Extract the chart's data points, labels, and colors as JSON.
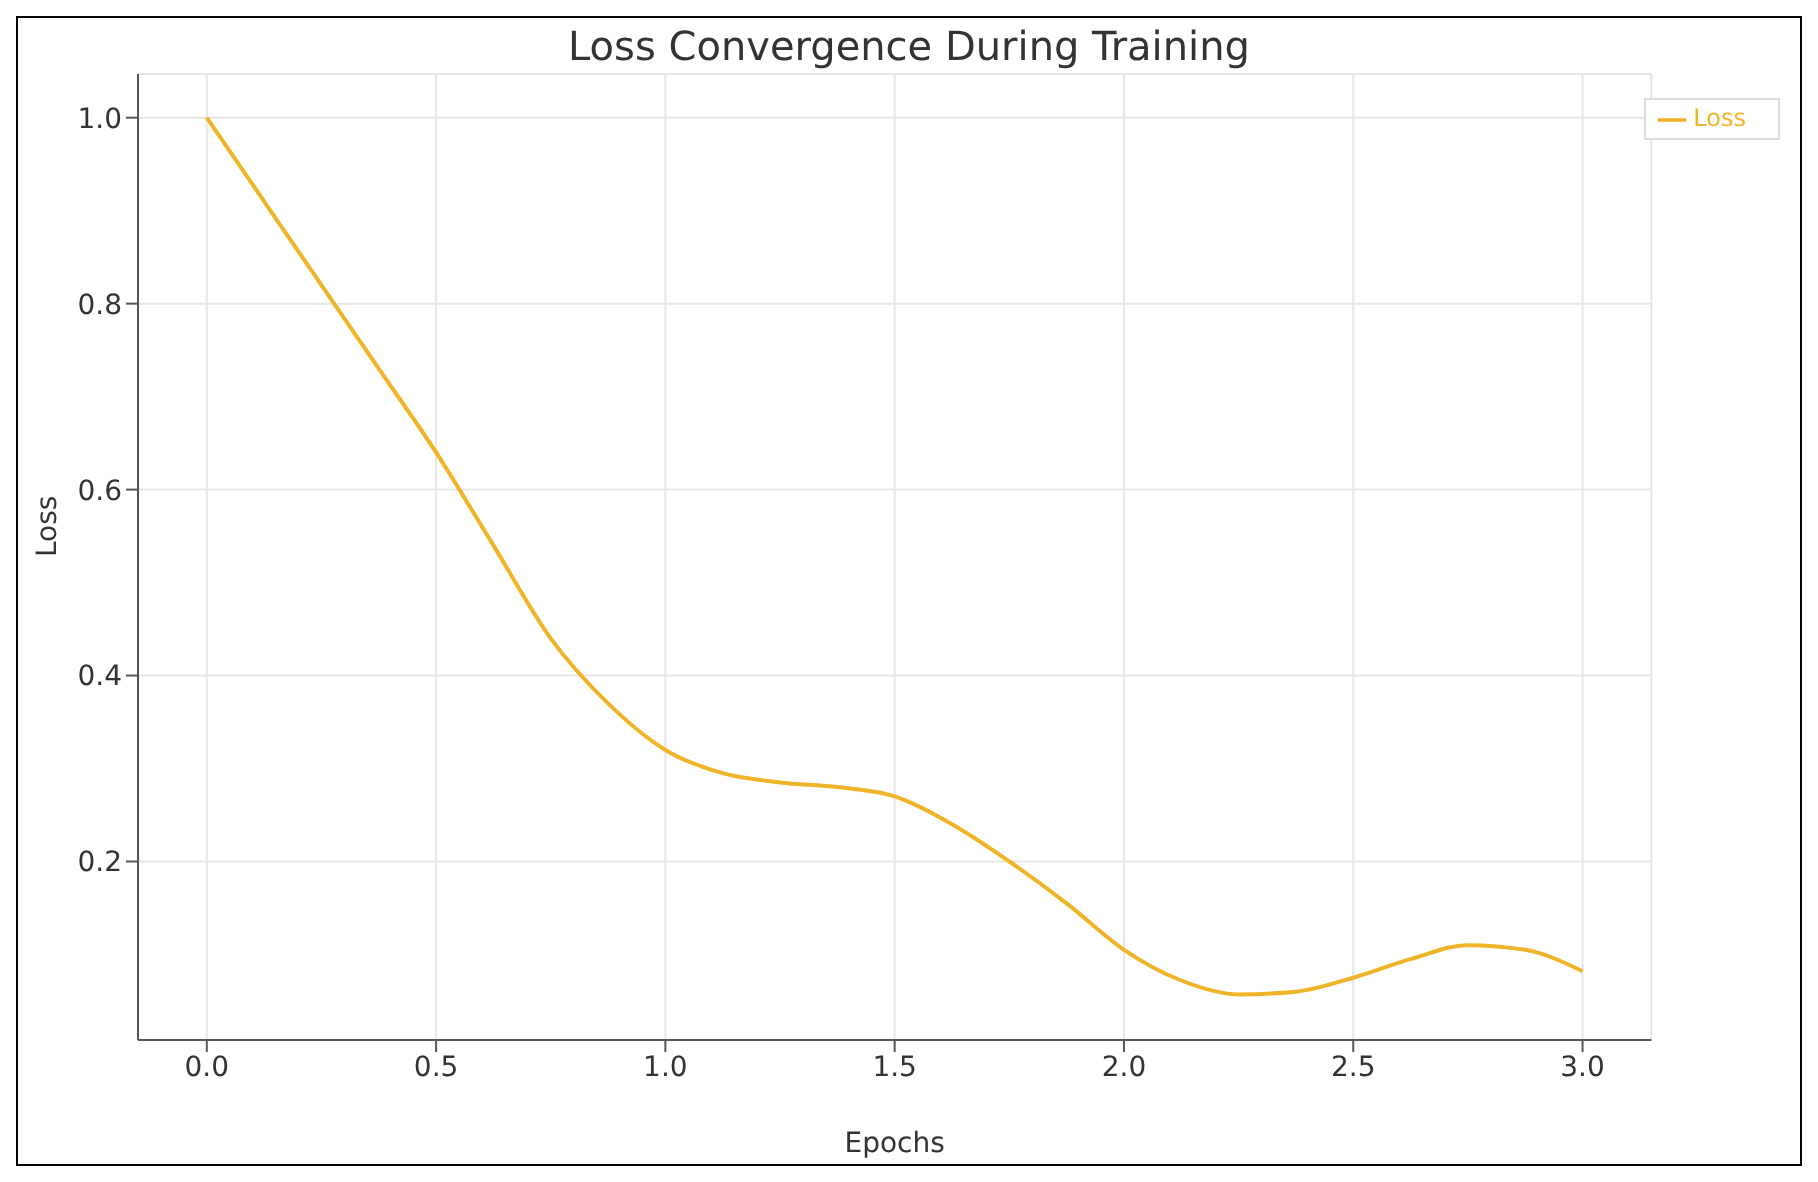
{
  "chart_data": {
    "type": "line",
    "title": "Loss Convergence During Training",
    "xlabel": "Epochs",
    "ylabel": "Loss",
    "x": [
      0,
      0.125,
      0.25,
      0.375,
      0.5,
      0.625,
      0.75,
      0.875,
      1.0,
      1.125,
      1.25,
      1.375,
      1.5,
      1.625,
      1.75,
      1.875,
      2.0,
      2.125,
      2.25,
      2.375,
      2.5,
      2.625,
      2.75,
      2.875,
      3.0
    ],
    "series": [
      {
        "name": "Loss",
        "color": "#f0b429",
        "values": [
          1.0,
          0.91,
          0.82,
          0.73,
          0.64,
          0.54,
          0.44,
          0.37,
          0.32,
          0.295,
          0.285,
          0.28,
          0.27,
          0.24,
          0.2,
          0.155,
          0.105,
          0.072,
          0.057,
          0.06,
          0.075,
          0.095,
          0.11,
          0.105,
          0.082
        ]
      }
    ],
    "xlim": [
      -0.15,
      3.15
    ],
    "ylim": [
      0.008,
      1.047
    ],
    "xticks": [
      {
        "value": 0,
        "label": "0.0"
      },
      0.5,
      {
        "value": 1,
        "label": "1.0"
      },
      1.5,
      {
        "value": 2,
        "label": "2.0"
      },
      2.5,
      {
        "value": 3,
        "label": "3.0"
      }
    ],
    "yticks": [
      0.2,
      0.4,
      0.6,
      0.8,
      {
        "value": 1,
        "label": "1.0"
      }
    ],
    "grid": true,
    "legend": "top right",
    "marker": "none",
    "line_style": "solid"
  }
}
